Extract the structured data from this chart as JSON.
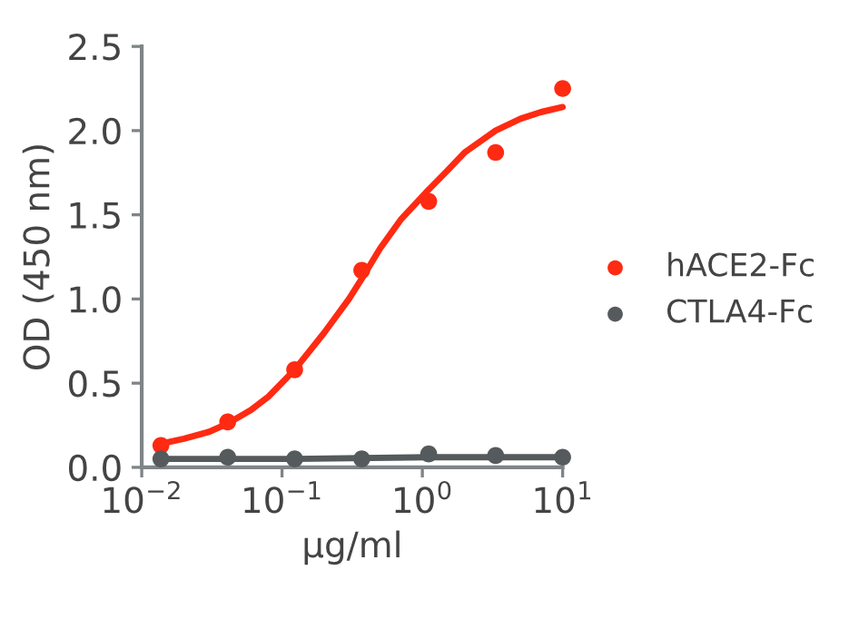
{
  "chart_data": {
    "type": "scatter",
    "xlabel": "μg/ml",
    "ylabel": "OD (450 nm)",
    "log": "x",
    "xlim": [
      0.01,
      10
    ],
    "xticks": [
      {
        "value": 0.01,
        "label": "10$^{−2}$"
      },
      {
        "value": 0.1,
        "label": "10$^{−1}$"
      },
      {
        "value": 1,
        "label": "10$^{0}$"
      },
      {
        "value": 10,
        "label": "10$^{1}$"
      }
    ],
    "ylim": [
      0,
      2.5
    ],
    "yticks": [
      {
        "value": 0,
        "label": "0.0"
      },
      {
        "value": 0.5,
        "label": "0.5"
      },
      {
        "value": 1,
        "label": "1.0"
      },
      {
        "value": 1.5,
        "label": "1.5"
      },
      {
        "value": 2,
        "label": "2.0"
      },
      {
        "value": 2.5,
        "label": "2.5"
      }
    ],
    "x": [
      0.0137,
      0.041,
      0.123,
      0.37,
      1.11,
      3.33,
      10
    ],
    "legend": "right",
    "grid": false,
    "series": [
      {
        "name": "hACE2-Fc",
        "color": "#ff2a12",
        "marker": "circle",
        "values": [
          0.13,
          0.27,
          0.58,
          1.17,
          1.58,
          1.87,
          2.25
        ]
      },
      {
        "name": "CTLA4-Fc",
        "color": "#555a5c",
        "marker": "circle",
        "values": [
          0.05,
          0.06,
          0.05,
          0.05,
          0.08,
          0.07,
          0.06
        ]
      },
      {
        "type": "line",
        "color": "#ff2a12",
        "x": [
          0.0137,
          0.02,
          0.03,
          0.041,
          0.06,
          0.08,
          0.123,
          0.2,
          0.3,
          0.37,
          0.5,
          0.7,
          1.11,
          1.5,
          2,
          3.33,
          5,
          7,
          10
        ],
        "values": [
          0.14,
          0.17,
          0.21,
          0.26,
          0.34,
          0.42,
          0.58,
          0.8,
          1.0,
          1.12,
          1.3,
          1.47,
          1.65,
          1.76,
          1.87,
          2.0,
          2.07,
          2.11,
          2.14
        ]
      },
      {
        "type": "line",
        "color": "#555a5c",
        "x": [
          0.0137,
          0.123,
          1.11,
          10
        ],
        "values": [
          0.05,
          0.05,
          0.06,
          0.06
        ]
      }
    ]
  }
}
